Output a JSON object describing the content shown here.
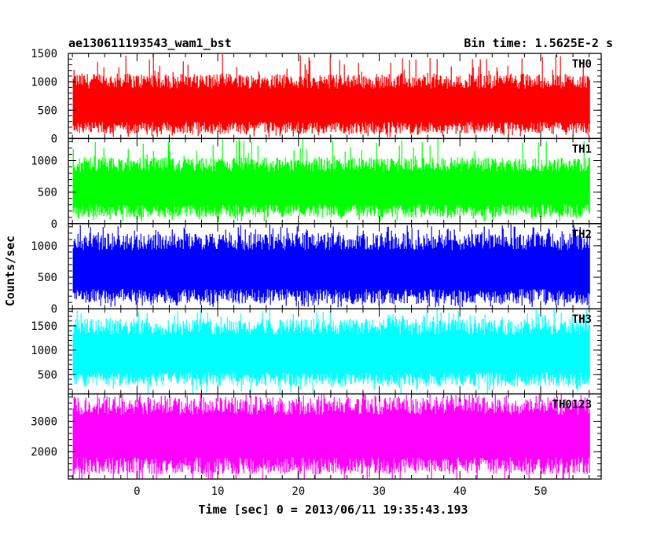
{
  "header": {
    "title": "ae130611193543_wam1_bst",
    "bin_time": "Bin time: 1.5625E-2 s"
  },
  "chart_data": {
    "type": "line",
    "xlabel": "Time [sec] 0 = 2013/06/11 19:35:43.193",
    "ylabel": "Counts/sec",
    "xlim": [
      -8.5,
      57.5
    ],
    "x_ticks": [
      0,
      10,
      20,
      30,
      40,
      50
    ],
    "x_tick_labels": [
      "0",
      "10",
      "20",
      "30",
      "40",
      "50"
    ],
    "x_data_range": [
      -7.9,
      56.1
    ],
    "panels": [
      {
        "name": "TH0",
        "color": "#ff0000",
        "ylim": [
          0,
          1500
        ],
        "y_ticks": [
          0,
          500,
          1000,
          1500
        ],
        "y_tick_labels": [
          "0",
          "500",
          "1000",
          "1500"
        ],
        "mean": 550,
        "typical_low": 80,
        "typical_high": 1150,
        "max_spike": 1500
      },
      {
        "name": "TH1",
        "color": "#00ff00",
        "ylim": [
          0,
          1350
        ],
        "y_ticks": [
          0,
          500,
          1000
        ],
        "y_tick_labels": [
          "0",
          "500",
          "1000"
        ],
        "mean": 550,
        "typical_low": 100,
        "typical_high": 1050,
        "max_spike": 1350
      },
      {
        "name": "TH2",
        "color": "#0000ff",
        "ylim": [
          0,
          1350
        ],
        "y_ticks": [
          0,
          500,
          1000
        ],
        "y_tick_labels": [
          "0",
          "500",
          "1000"
        ],
        "mean": 600,
        "typical_low": 80,
        "typical_high": 1200,
        "max_spike": 1350
      },
      {
        "name": "TH3",
        "color": "#00ffff",
        "ylim": [
          100,
          1850
        ],
        "y_ticks": [
          500,
          1000,
          1500
        ],
        "y_tick_labels": [
          "500",
          "1000",
          "1500"
        ],
        "mean": 900,
        "typical_low": 250,
        "typical_high": 1650,
        "max_spike": 1850
      },
      {
        "name": "TH0123",
        "color": "#ff00ff",
        "ylim": [
          1100,
          3900
        ],
        "y_ticks": [
          2000,
          3000
        ],
        "y_tick_labels": [
          "2000",
          "3000"
        ],
        "mean": 2500,
        "typical_low": 1250,
        "typical_high": 3800,
        "max_spike": 3900
      }
    ]
  }
}
